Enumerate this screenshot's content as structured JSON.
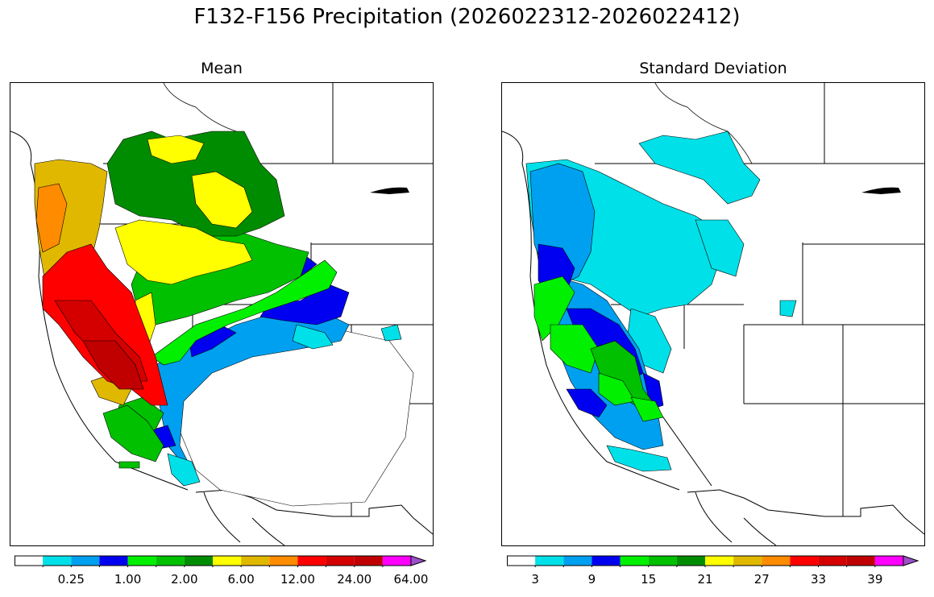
{
  "title": "F132-F156 Precipitation (2026022312-2026022412)",
  "panels": {
    "mean": {
      "title": "Mean"
    },
    "std": {
      "title": "Standard Deviation"
    }
  },
  "colorbars": {
    "mean": {
      "colors": [
        "#ffffff",
        "#00e0e8",
        "#00a0f0",
        "#0000f0",
        "#00f000",
        "#00c000",
        "#008c00",
        "#ffff00",
        "#e0b800",
        "#ff8c00",
        "#ff0000",
        "#d40000",
        "#c00000",
        "#ff00ff",
        "#9c50c8"
      ],
      "labels": [
        "0.25",
        "1.00",
        "2.00",
        "6.00",
        "12.00",
        "24.00",
        "64.00"
      ],
      "label_bins": [
        2,
        4,
        6,
        8,
        10,
        12,
        14
      ]
    },
    "std": {
      "colors": [
        "#ffffff",
        "#00e0e8",
        "#00a0f0",
        "#0000f0",
        "#00f000",
        "#00c000",
        "#008c00",
        "#ffff00",
        "#e0b800",
        "#ff8c00",
        "#ff0000",
        "#d40000",
        "#c00000",
        "#ff00ff",
        "#9c50c8"
      ],
      "labels": [
        "3",
        "9",
        "15",
        "21",
        "27",
        "33",
        "39"
      ],
      "label_bins": [
        1,
        3,
        5,
        7,
        9,
        11,
        13
      ]
    }
  }
}
